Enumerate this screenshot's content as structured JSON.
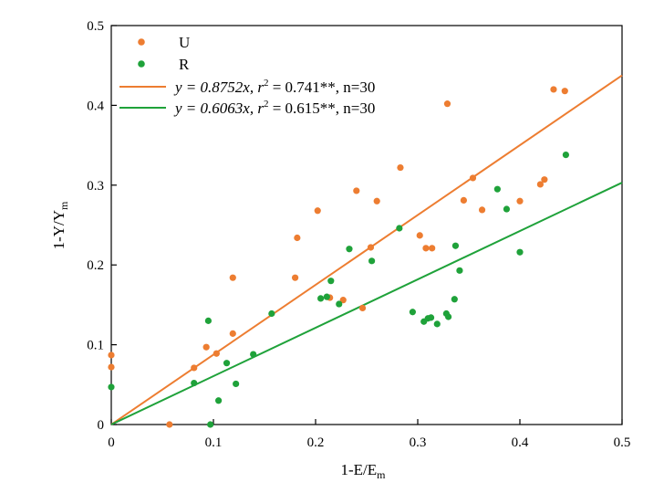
{
  "chart_data": {
    "type": "scatter",
    "xlabel": "1-E/E",
    "xlabel_sub": "m",
    "ylabel": "1-Y/Y",
    "ylabel_sub": "m",
    "xlim": [
      0,
      0.5
    ],
    "ylim": [
      0,
      0.5
    ],
    "x_ticks": [
      0,
      0.1,
      0.2,
      0.3,
      0.4,
      0.5
    ],
    "x_tick_labels": [
      "0",
      "0.1",
      "0.2",
      "0.3",
      "0.4",
      "0.5"
    ],
    "y_ticks": [
      0,
      0.1,
      0.2,
      0.3,
      0.4,
      0.5
    ],
    "y_tick_labels": [
      "0",
      "0.1",
      "0.2",
      "0.3",
      "0.4",
      "0.5"
    ],
    "grid": false,
    "legend_position": "top-left",
    "series": [
      {
        "name": "U",
        "color": "#ED7D31",
        "points": [
          [
            0.0,
            0.087
          ],
          [
            0.0,
            0.072
          ],
          [
            0.057,
            0.0
          ],
          [
            0.081,
            0.071
          ],
          [
            0.093,
            0.097
          ],
          [
            0.103,
            0.089
          ],
          [
            0.119,
            0.184
          ],
          [
            0.119,
            0.114
          ],
          [
            0.18,
            0.184
          ],
          [
            0.182,
            0.234
          ],
          [
            0.202,
            0.268
          ],
          [
            0.214,
            0.159
          ],
          [
            0.24,
            0.293
          ],
          [
            0.246,
            0.146
          ],
          [
            0.254,
            0.222
          ],
          [
            0.26,
            0.28
          ],
          [
            0.283,
            0.322
          ],
          [
            0.302,
            0.237
          ],
          [
            0.308,
            0.221
          ],
          [
            0.314,
            0.221
          ],
          [
            0.329,
            0.402
          ],
          [
            0.345,
            0.281
          ],
          [
            0.354,
            0.309
          ],
          [
            0.363,
            0.269
          ],
          [
            0.4,
            0.28
          ],
          [
            0.42,
            0.301
          ],
          [
            0.424,
            0.307
          ],
          [
            0.433,
            0.42
          ],
          [
            0.444,
            0.418
          ],
          [
            0.227,
            0.156
          ]
        ]
      },
      {
        "name": "R",
        "color": "#1FA23A",
        "points": [
          [
            0.0,
            0.047
          ],
          [
            0.081,
            0.052
          ],
          [
            0.095,
            0.13
          ],
          [
            0.097,
            0.0
          ],
          [
            0.105,
            0.03
          ],
          [
            0.113,
            0.077
          ],
          [
            0.122,
            0.051
          ],
          [
            0.139,
            0.088
          ],
          [
            0.157,
            0.139
          ],
          [
            0.205,
            0.158
          ],
          [
            0.211,
            0.16
          ],
          [
            0.215,
            0.18
          ],
          [
            0.223,
            0.151
          ],
          [
            0.233,
            0.22
          ],
          [
            0.255,
            0.205
          ],
          [
            0.282,
            0.246
          ],
          [
            0.295,
            0.141
          ],
          [
            0.306,
            0.129
          ],
          [
            0.313,
            0.134
          ],
          [
            0.319,
            0.126
          ],
          [
            0.328,
            0.139
          ],
          [
            0.33,
            0.135
          ],
          [
            0.336,
            0.157
          ],
          [
            0.337,
            0.224
          ],
          [
            0.341,
            0.193
          ],
          [
            0.378,
            0.295
          ],
          [
            0.387,
            0.27
          ],
          [
            0.4,
            0.216
          ],
          [
            0.445,
            0.338
          ],
          [
            0.31,
            0.133
          ]
        ]
      }
    ],
    "fit_lines": [
      {
        "series": "U",
        "color": "#ED7D31",
        "slope": 0.8752,
        "eq": "y = 0.8752x, r",
        "r2_tail": " = 0.741**, n=30"
      },
      {
        "series": "R",
        "color": "#1FA23A",
        "slope": 0.6063,
        "eq": "y = 0.6063x, r",
        "r2_tail": " = 0.615**, n=30"
      }
    ]
  }
}
